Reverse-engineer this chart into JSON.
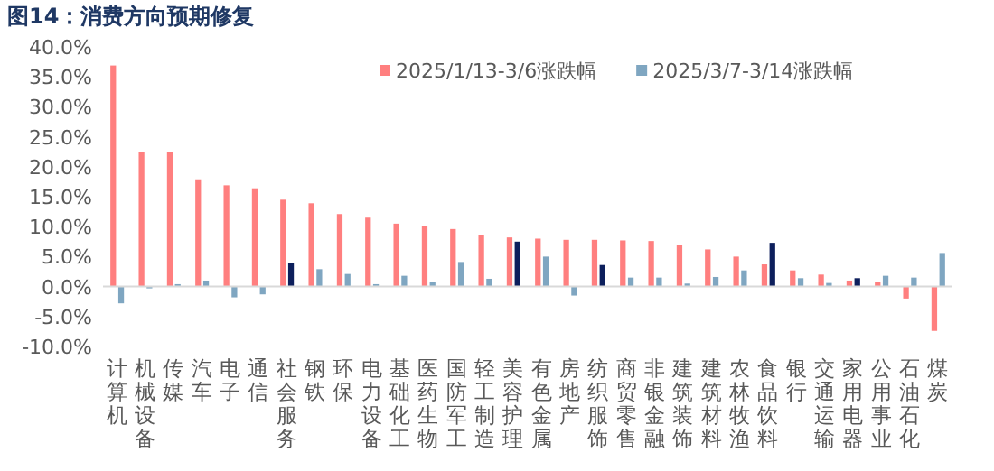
{
  "chart_data": {
    "type": "bar",
    "title": "图14：消费方向预期修复",
    "categories": [
      "计算机",
      "机械设备",
      "传媒",
      "汽车",
      "电子",
      "通信",
      "社会服务",
      "钢铁",
      "环保",
      "电力设备",
      "基础化工",
      "医药生物",
      "国防军工",
      "轻工制造",
      "美容护理",
      "有色金属",
      "房地产",
      "纺织服饰",
      "商贸零售",
      "非银金融",
      "建筑装饰",
      "建筑材料",
      "农林牧渔",
      "食品饮料",
      "银行",
      "交通运输",
      "家用电器",
      "公用事业",
      "石油石化",
      "煤炭"
    ],
    "series": [
      {
        "name": "2025/1/13-3/6涨跌幅",
        "color": "#ff7f7f",
        "values": [
          36.9,
          22.5,
          22.4,
          17.9,
          16.9,
          16.4,
          14.5,
          13.9,
          12.1,
          11.5,
          10.5,
          10.1,
          9.6,
          8.6,
          8.2,
          8.0,
          7.8,
          7.8,
          7.7,
          7.6,
          7.0,
          6.2,
          5.0,
          3.7,
          2.7,
          2.0,
          1.0,
          0.8,
          -2.0,
          -7.4
        ]
      },
      {
        "name": "2025/3/7-3/14涨跌幅",
        "color": "#7fa6c1",
        "colors": [
          "#7fa6c1",
          "#7fa6c1",
          "#7fa6c1",
          "#7fa6c1",
          "#7fa6c1",
          "#7fa6c1",
          "#0d1f5c",
          "#7fa6c1",
          "#7fa6c1",
          "#7fa6c1",
          "#7fa6c1",
          "#7fa6c1",
          "#7fa6c1",
          "#7fa6c1",
          "#0d1f5c",
          "#7fa6c1",
          "#7fa6c1",
          "#0d1f5c",
          "#7fa6c1",
          "#7fa6c1",
          "#7fa6c1",
          "#7fa6c1",
          "#7fa6c1",
          "#0d1f5c",
          "#7fa6c1",
          "#7fa6c1",
          "#0d1f5c",
          "#7fa6c1",
          "#7fa6c1",
          "#7fa6c1"
        ],
        "values": [
          -2.8,
          -0.3,
          0.4,
          1.0,
          -1.8,
          -1.3,
          3.9,
          2.9,
          2.1,
          0.4,
          1.8,
          0.7,
          4.1,
          1.3,
          7.5,
          5.0,
          -1.5,
          3.6,
          1.5,
          1.5,
          0.5,
          1.6,
          2.7,
          7.3,
          1.4,
          0.6,
          1.4,
          1.8,
          1.5,
          5.6
        ]
      }
    ],
    "ylim": [
      -10,
      40
    ],
    "yticks": [
      {
        "value": -10,
        "label": "-10.0%"
      },
      {
        "value": -5,
        "label": "-5.0%"
      },
      {
        "value": 0,
        "label": "0.0%"
      },
      {
        "value": 5,
        "label": "5.0%"
      },
      {
        "value": 10,
        "label": "10.0%"
      },
      {
        "value": 15,
        "label": "15.0%"
      },
      {
        "value": 20,
        "label": "20.0%"
      },
      {
        "value": 25,
        "label": "25.0%"
      },
      {
        "value": 30,
        "label": "30.0%"
      },
      {
        "value": 35,
        "label": "35.0%"
      },
      {
        "value": 40,
        "label": "40.0%"
      }
    ],
    "legend": "top"
  }
}
